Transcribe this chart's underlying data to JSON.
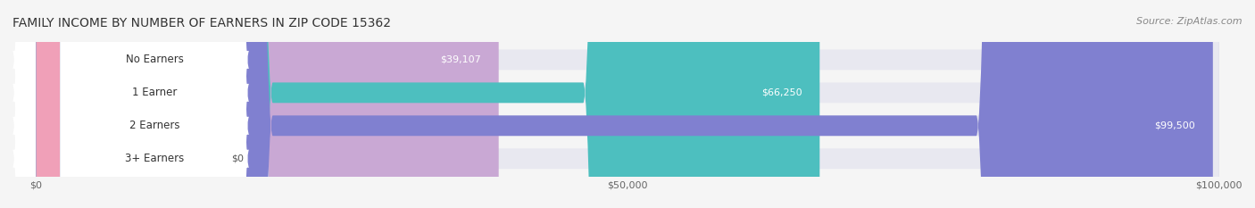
{
  "title": "FAMILY INCOME BY NUMBER OF EARNERS IN ZIP CODE 15362",
  "source": "Source: ZipAtlas.com",
  "categories": [
    "No Earners",
    "1 Earner",
    "2 Earners",
    "3+ Earners"
  ],
  "values": [
    39107,
    66250,
    99500,
    0
  ],
  "max_value": 100000,
  "bar_colors": [
    "#c9a8d4",
    "#4dbfbf",
    "#8080d0",
    "#f0a0b8"
  ],
  "bar_bg_color": "#e8e8f0",
  "label_bg_color": "#ffffff",
  "label_colors": [
    "#c9a8d4",
    "#4dbfbf",
    "#8080d0",
    "#f0a0b8"
  ],
  "value_labels": [
    "$39,107",
    "$66,250",
    "$99,500",
    "$0"
  ],
  "xtick_labels": [
    "$0",
    "$50,000",
    "$100,000"
  ],
  "xtick_values": [
    0,
    50000,
    100000
  ],
  "fig_width": 14.06,
  "fig_height": 2.33,
  "background_color": "#f5f5f5",
  "title_fontsize": 10,
  "source_fontsize": 8,
  "bar_label_fontsize": 8.5,
  "value_fontsize": 8,
  "tick_fontsize": 8
}
